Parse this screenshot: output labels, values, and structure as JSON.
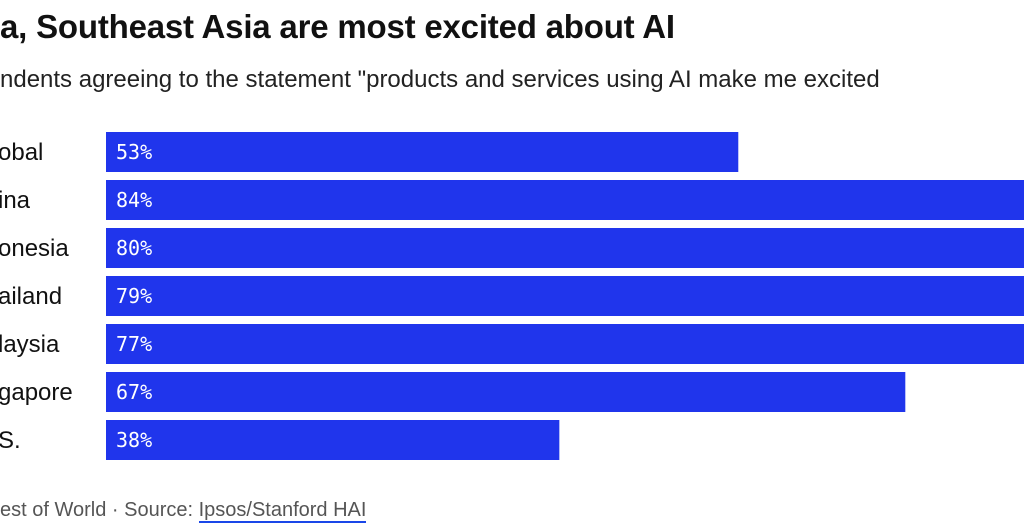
{
  "chart_data": {
    "type": "bar",
    "orientation": "horizontal",
    "title": "a, Southeast Asia are most excited about AI",
    "subtitle": "ndents agreeing to the statement \"products and services using AI make me excited",
    "categories": [
      "obal",
      "ina",
      "onesia",
      "ailand",
      "laysia",
      "gapore",
      "S."
    ],
    "values": [
      53,
      84,
      80,
      79,
      77,
      67,
      38
    ],
    "value_labels": [
      "53%",
      "84%",
      "80%",
      "79%",
      "77%",
      "67%",
      "38%"
    ],
    "unit": "%",
    "xlim": [
      0,
      100
    ],
    "grid": false,
    "bar_color": "#2035ec"
  },
  "footer": {
    "credit": "est of World · Source: ",
    "source_link": "Ipsos/Stanford HAI"
  }
}
